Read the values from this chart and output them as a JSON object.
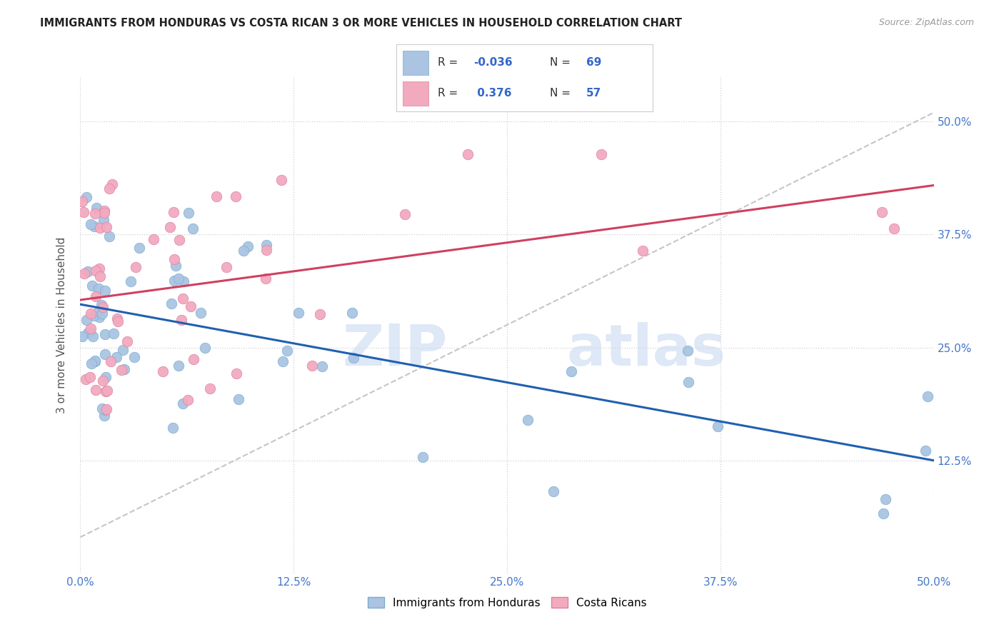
{
  "title": "IMMIGRANTS FROM HONDURAS VS COSTA RICAN 3 OR MORE VEHICLES IN HOUSEHOLD CORRELATION CHART",
  "source": "Source: ZipAtlas.com",
  "ylabel": "3 or more Vehicles in Household",
  "legend_label1": "Immigrants from Honduras",
  "legend_label2": "Costa Ricans",
  "blue_color": "#aac4e2",
  "blue_edge_color": "#7aadd0",
  "pink_color": "#f2aabf",
  "pink_edge_color": "#e080a0",
  "blue_line_color": "#2060b0",
  "pink_line_color": "#d04060",
  "gray_dash_color": "#b8b8b8",
  "tick_label_color": "#4477cc",
  "grid_color": "#d0d0d0",
  "title_color": "#222222",
  "ylabel_color": "#555555",
  "source_color": "#999999",
  "watermark_color": "#c8daf0",
  "legend_border_color": "#cccccc",
  "legend_R_color": "#3366cc",
  "legend_text_color": "#333333",
  "blue_R": -0.036,
  "blue_N": 69,
  "pink_R": 0.376,
  "pink_N": 57,
  "xlim": [
    0.0,
    0.5
  ],
  "ylim": [
    0.0,
    0.55
  ],
  "xtick_vals": [
    0.0,
    0.125,
    0.25,
    0.375,
    0.5
  ],
  "ytick_vals": [
    0.125,
    0.25,
    0.375,
    0.5
  ],
  "xtick_labels": [
    "0.0%",
    "12.5%",
    "25.0%",
    "37.5%",
    "50.0%"
  ],
  "ytick_labels": [
    "12.5%",
    "25.0%",
    "37.5%",
    "50.0%"
  ],
  "figsize": [
    14.06,
    8.92
  ],
  "dpi": 100
}
